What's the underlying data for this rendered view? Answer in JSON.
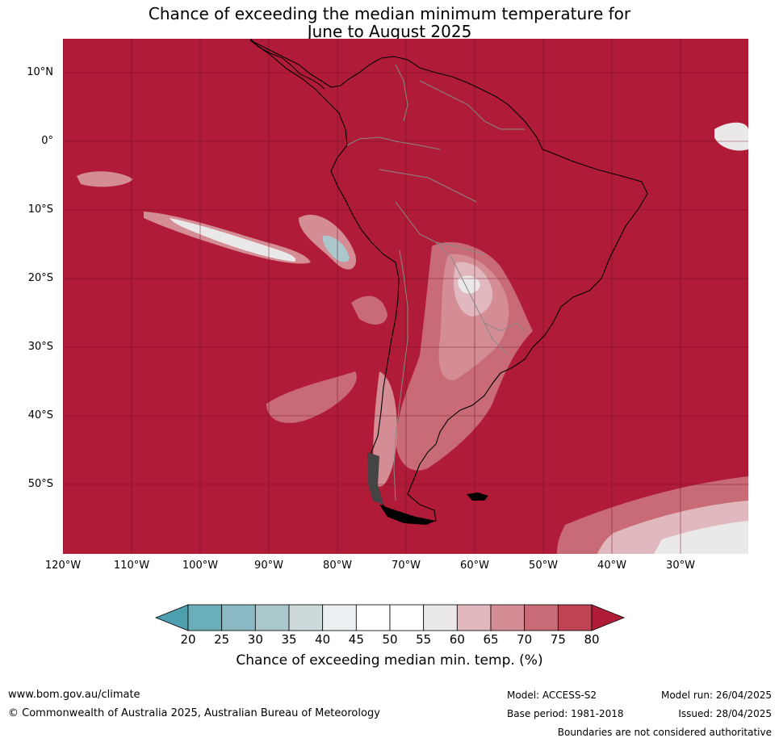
{
  "title": {
    "line1": "Chance of exceeding the median minimum temperature for",
    "line2": "June to August 2025"
  },
  "map": {
    "background_color": "#b01b37",
    "lat_ticks": [
      "10°N",
      "0°",
      "10°S",
      "20°S",
      "30°S",
      "40°S",
      "50°S"
    ],
    "lon_ticks": [
      "120°W",
      "110°W",
      "100°W",
      "90°W",
      "80°W",
      "70°W",
      "60°W",
      "50°W",
      "40°W",
      "30°W"
    ]
  },
  "colorbar": {
    "label": "Chance of exceeding median min. temp. (%)",
    "ticks": [
      "20",
      "25",
      "30",
      "35",
      "40",
      "45",
      "50",
      "55",
      "60",
      "65",
      "70",
      "75",
      "80"
    ],
    "colors": [
      "#4d9faf",
      "#6aaeba",
      "#8ab9c4",
      "#aac7cc",
      "#cdd9db",
      "#ebf0f2",
      "#ffffff",
      "#ffffff",
      "#ebe8e9",
      "#e1b8be",
      "#d48c95",
      "#c86b76",
      "#be4453",
      "#b01b37"
    ]
  },
  "footer": {
    "website": "www.bom.gov.au/climate",
    "copyright": "© Commonwealth of Australia 2025, Australian Bureau of Meteorology",
    "model": "Model: ACCESS-S2",
    "base_period": "Base period: 1981-2018",
    "model_run": "Model run: 26/04/2025",
    "issued": "Issued: 28/04/2025",
    "disclaimer": "Boundaries are not considered authoritative"
  }
}
